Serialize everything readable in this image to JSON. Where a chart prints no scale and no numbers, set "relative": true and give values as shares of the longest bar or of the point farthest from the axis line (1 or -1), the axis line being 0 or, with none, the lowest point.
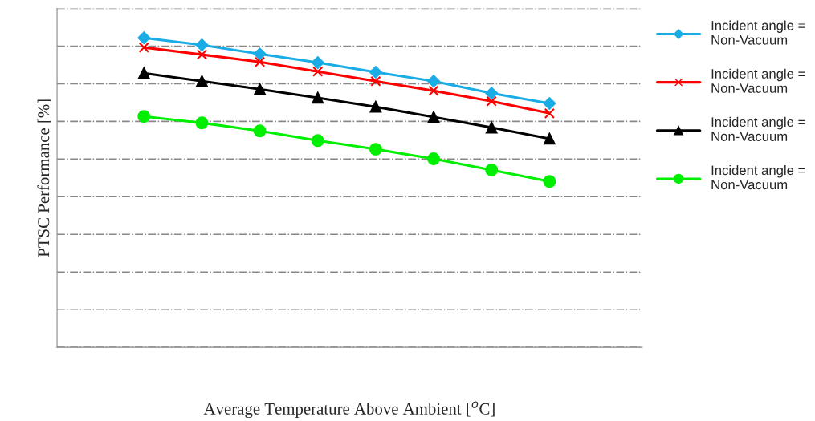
{
  "chart_data": {
    "type": "line",
    "xlabel": "Average Temperature Above Ambient [$^{o}$C]",
    "ylabel": "PTSC Performance [%]",
    "categories": [
      null,
      null,
      null,
      null,
      null,
      null,
      null,
      null
    ],
    "relative": true,
    "grid": "y",
    "legend": "right",
    "line_style": "solid",
    "series": [
      {
        "name": "Incident angle =\nNon-Vacuum",
        "color": "#1aace6",
        "marker": "diamond",
        "values": [
          1,
          0.977,
          0.948,
          0.92,
          0.889,
          0.86,
          0.821,
          0.788
        ]
      },
      {
        "name": "Incident angle =\nNon-Vacuum",
        "color": "#ff0000",
        "marker": "cross",
        "values": [
          0.969,
          0.946,
          0.922,
          0.891,
          0.86,
          0.829,
          0.795,
          0.756
        ]
      },
      {
        "name": "Incident angle =\nNon-Vacuum",
        "color": "#000000",
        "marker": "triangle",
        "values": [
          0.886,
          0.86,
          0.834,
          0.806,
          0.777,
          0.744,
          0.71,
          0.674
        ]
      },
      {
        "name": "Incident angle =\nNon-Vacuum",
        "color": "#00ee00",
        "marker": "circle",
        "values": [
          0.746,
          0.725,
          0.699,
          0.668,
          0.64,
          0.609,
          0.573,
          0.536
        ]
      }
    ]
  }
}
